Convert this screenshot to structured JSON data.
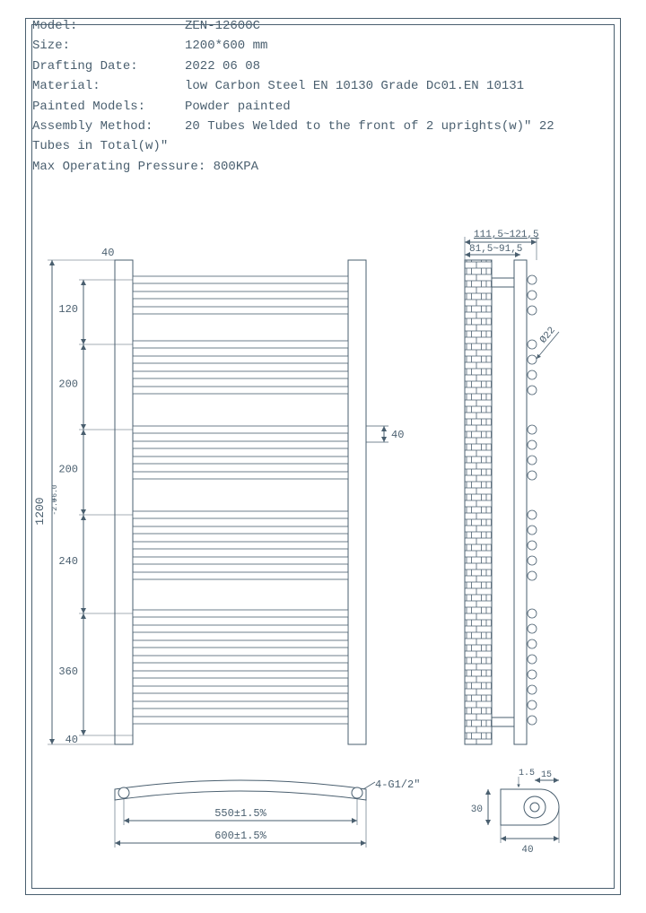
{
  "specs": {
    "model_label": "Model:",
    "model_value": "ZEN-12600C",
    "size_label": "Size:",
    "size_value": "1200*600 mm",
    "date_label": "Drafting Date:",
    "date_value": "2022 06 08",
    "material_label": "Material:",
    "material_value": "low Carbon Steel  EN 10130 Grade Dc01.EN 10131",
    "painted_label": "Painted Models:",
    "painted_value": "Powder painted",
    "assembly_label": "Assembly Method:",
    "assembly_value": "20 Tubes Welded to the front of 2 uprights(w)\"  22",
    "assembly_cont": "Tubes in Total(w)\"",
    "pressure_label": "Max Operating Pressure: 800KPA"
  },
  "dims": {
    "top_margin": "40",
    "height_total": "1200",
    "height_tol": "+6.0\n-2.0",
    "seg_120": "120",
    "seg_200a": "200",
    "seg_200b": "200",
    "seg_240": "240",
    "seg_360": "360",
    "bottom_margin": "40",
    "tube_pitch": "40",
    "bottom_width1": "550±1.5%",
    "bottom_width2": "600±1.5%",
    "thread": "4-G1/2\"",
    "side_top1": "111,5~121,5",
    "side_top2": "81,5~91,5",
    "side_diam": "Ø22",
    "detail_40": "40",
    "detail_30": "30",
    "detail_15": "15",
    "detail_1_5": "1.5"
  },
  "style": {
    "stroke": "#4a5f6f",
    "stroke_w": 1,
    "text_color": "#4a5f6f",
    "font_size": 12
  }
}
